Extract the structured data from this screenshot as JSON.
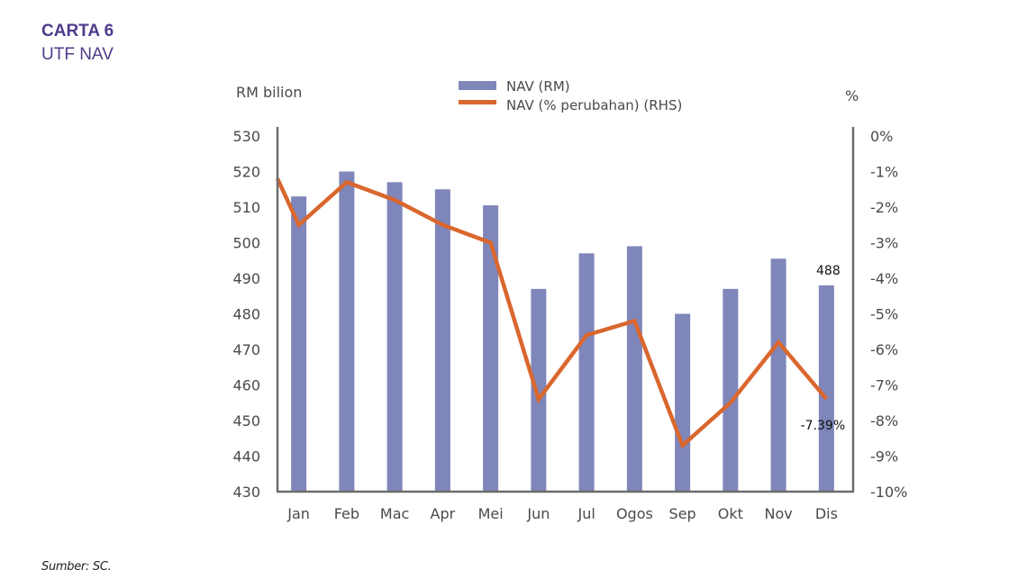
{
  "header": {
    "title": "CARTA 6",
    "subtitle": "UTF NAV"
  },
  "footer": {
    "source": "Sumber:  SC."
  },
  "colors": {
    "bar": "#7f86ba",
    "line": "#d9672e",
    "axis": "#6d6d6d",
    "title": "#4f3b8c"
  },
  "chart_data": {
    "type": "bar+line",
    "title": "UTF NAV",
    "categories": [
      "Jan",
      "Feb",
      "Mac",
      "Apr",
      "Mei",
      "Jun",
      "Jul",
      "Ogos",
      "Sep",
      "Okt",
      "Nov",
      "Dis"
    ],
    "left_axis": {
      "label": "RM bilion",
      "range": [
        430,
        530
      ],
      "ticks": [
        "530",
        "520",
        "510",
        "500",
        "490",
        "480",
        "470",
        "460",
        "450",
        "440",
        "430"
      ]
    },
    "right_axis": {
      "label": "%",
      "range": [
        -10,
        0
      ],
      "ticks": [
        "0%",
        "-1%",
        "-2%",
        "-3%",
        "-4%",
        "-5%",
        "-6%",
        "-7%",
        "-8%",
        "-9%",
        "-10%"
      ]
    },
    "series": [
      {
        "name": "NAV (RM)",
        "type": "bar",
        "axis": "left",
        "values": [
          513,
          520,
          517,
          515,
          510.5,
          487,
          497,
          499,
          480,
          487,
          495.5,
          488
        ]
      },
      {
        "name": "NAV (% perubahan) (RHS)",
        "type": "line",
        "axis": "right",
        "start_value": -1.2,
        "values": [
          -2.5,
          -1.3,
          -1.8,
          -2.5,
          -3.0,
          -7.4,
          -5.6,
          -5.2,
          -8.7,
          -7.5,
          -5.8,
          -7.39
        ]
      }
    ],
    "annotations": [
      {
        "text": "488",
        "category": "Dis",
        "series": "NAV (RM)"
      },
      {
        "text": "-7.39%",
        "category": "Dis",
        "series": "NAV (% perubahan) (RHS)"
      }
    ],
    "legend": {
      "placement": "top-center",
      "entries": [
        "NAV (RM)",
        "NAV (% perubahan) (RHS)"
      ]
    },
    "grid": false
  }
}
